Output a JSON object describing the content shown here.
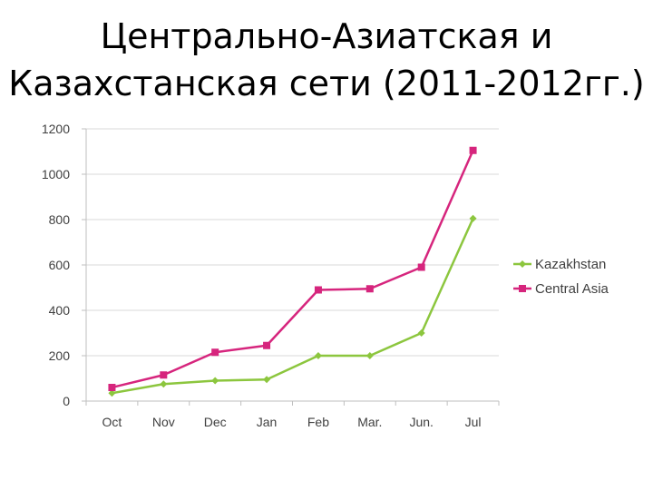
{
  "slide": {
    "title_line1": "Центрально-Азиатская и",
    "title_line2": "Казахстанская сети (2011-2012гг.)"
  },
  "chart_data": {
    "type": "line",
    "categories": [
      "Oct",
      "Nov",
      "Dec",
      "Jan",
      "Feb",
      "Mar.",
      "Jun.",
      "Jul"
    ],
    "ylim": [
      0,
      1200
    ],
    "yticks": [
      0,
      200,
      400,
      600,
      800,
      1000,
      1200
    ],
    "grid": true,
    "legend_position": "right",
    "series": [
      {
        "name": "Kazakhstan",
        "color": "#8cc63e",
        "marker": "diamond",
        "values": [
          35,
          75,
          90,
          95,
          200,
          200,
          300,
          805
        ]
      },
      {
        "name": "Central Asia",
        "color": "#d6257d",
        "marker": "square",
        "values": [
          60,
          115,
          215,
          245,
          490,
          495,
          590,
          1105
        ]
      }
    ]
  }
}
